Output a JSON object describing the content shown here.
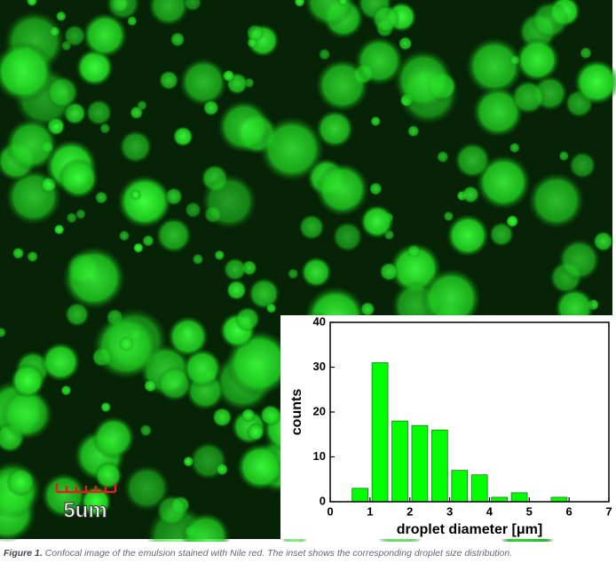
{
  "image": {
    "scale_bar_label": "5um"
  },
  "caption": {
    "label": "Figure 1.",
    "text": "Confocal image of the emulsion stained with Nile red. The inset shows the corresponding droplet size distribution."
  },
  "chart_data": {
    "type": "histogram",
    "x_label": "droplet diameter [μm]",
    "y_label": "counts",
    "bins": [
      0.5,
      1,
      1.5,
      2,
      2.5,
      3,
      3.5,
      4,
      4.5,
      5,
      5.5,
      6
    ],
    "values": [
      3,
      31,
      18,
      17,
      16,
      7,
      6,
      1,
      2,
      0,
      1
    ],
    "color": "#00ff00",
    "xlim": [
      0,
      7
    ],
    "xticks": [
      0,
      1,
      2,
      3,
      4,
      5,
      6,
      7
    ],
    "ylim": [
      0,
      40
    ],
    "yticks": [
      0,
      10,
      20,
      30,
      40
    ]
  }
}
